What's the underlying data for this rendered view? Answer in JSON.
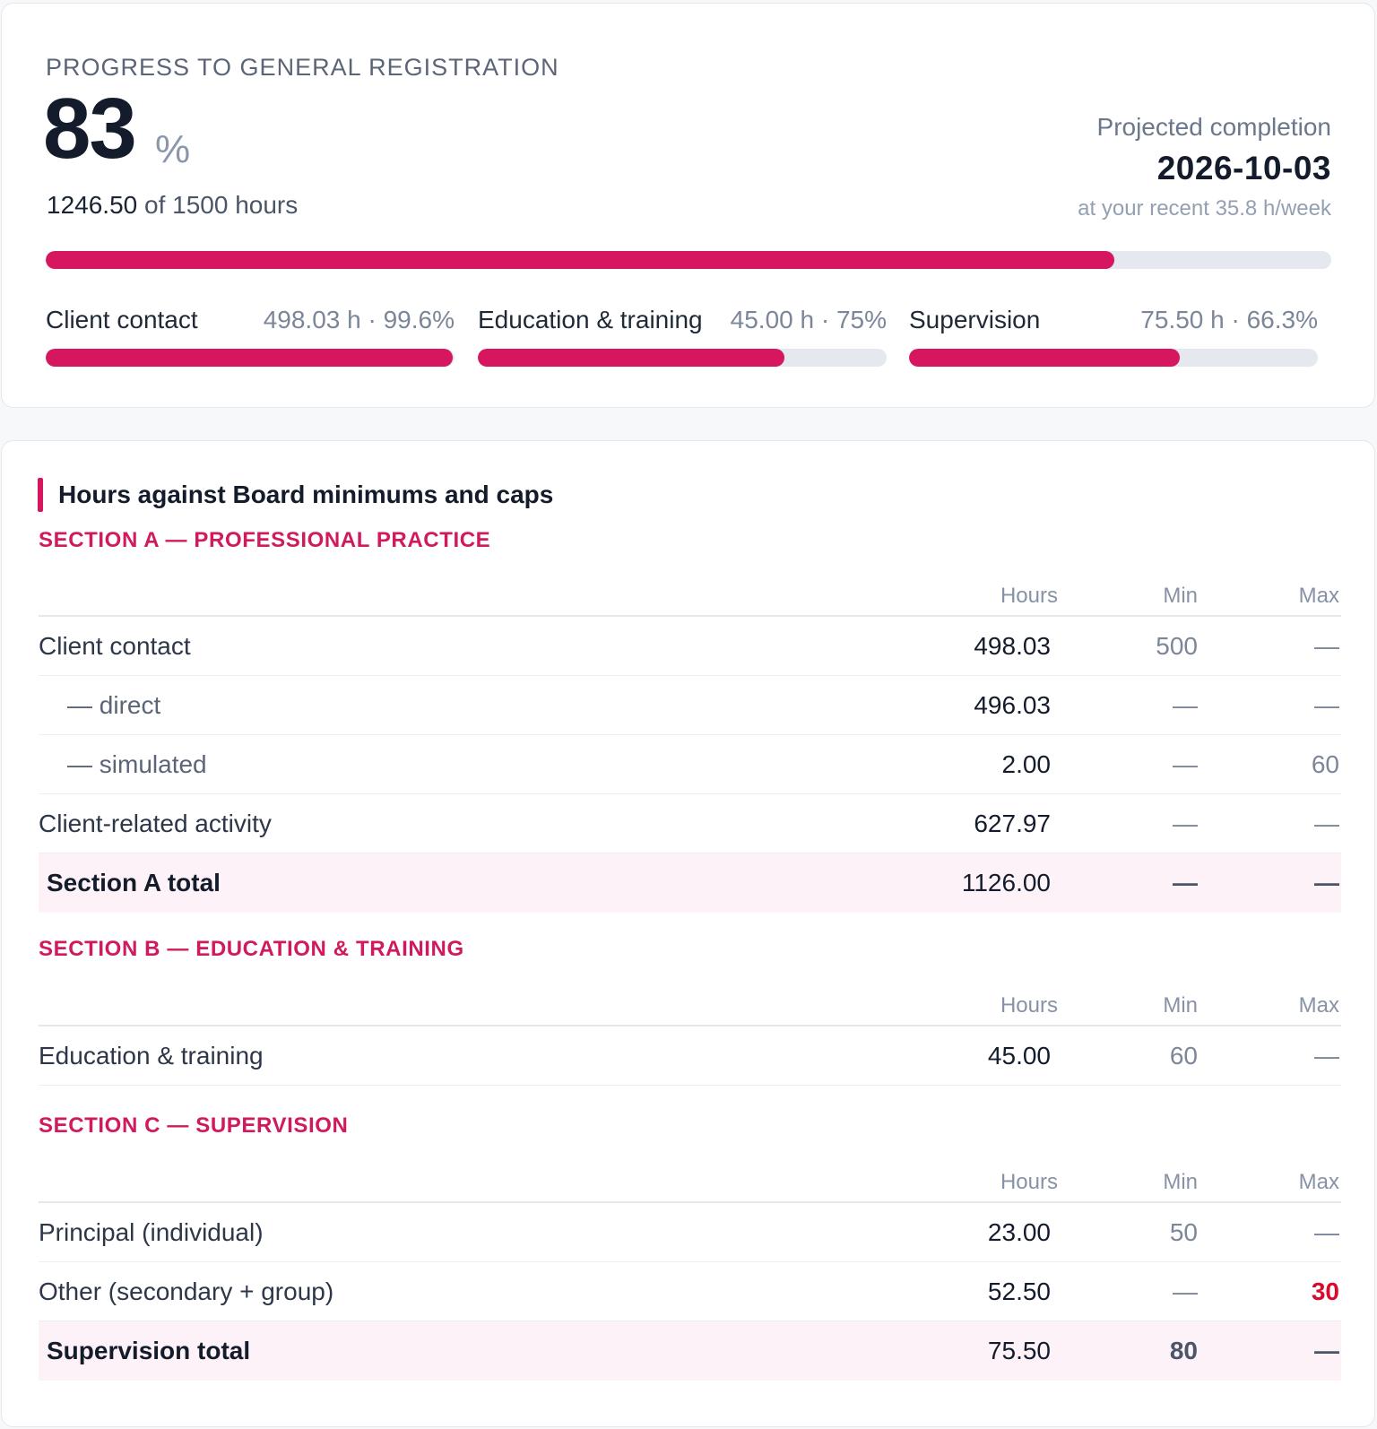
{
  "progress": {
    "eyebrow": "PROGRESS TO GENERAL REGISTRATION",
    "percent": "83",
    "percent_symbol": "%",
    "hours_done": "1246.50",
    "hours_rest": " of 1500 hours",
    "fraction": 0.831,
    "projected_label": "Projected completion",
    "projected_date": "2026-10-03",
    "projected_rate": "at your recent 35.8 h/week",
    "subs": [
      {
        "name": "Client contact",
        "value": "498.03 h · 99.6%",
        "fraction": 0.996
      },
      {
        "name": "Education & training",
        "value": "45.00 h · 75%",
        "fraction": 0.75
      },
      {
        "name": "Supervision",
        "value": "75.50 h · 66.3%",
        "fraction": 0.663
      }
    ]
  },
  "hours": {
    "title": "Hours against Board minimums and caps",
    "col_hours": "Hours",
    "col_min": "Min",
    "col_max": "Max",
    "section_a": {
      "heading": "SECTION A — PROFESSIONAL PRACTICE",
      "rows": [
        {
          "label": "Client contact",
          "hours": "498.03",
          "min": "500",
          "max": "—"
        },
        {
          "label": "— direct",
          "hours": "496.03",
          "min": "—",
          "max": "—"
        },
        {
          "label": "— simulated",
          "hours": "2.00",
          "min": "—",
          "max": "60"
        },
        {
          "label": "Client-related activity",
          "hours": "627.97",
          "min": "—",
          "max": "—"
        }
      ],
      "total": {
        "label": "Section A total",
        "hours": "1126.00",
        "min": "—",
        "max": "—"
      }
    },
    "section_b": {
      "heading": "SECTION B — EDUCATION & TRAINING",
      "rows": [
        {
          "label": "Education & training",
          "hours": "45.00",
          "min": "60",
          "max": "—"
        }
      ]
    },
    "section_c": {
      "heading": "SECTION C — SUPERVISION",
      "rows": [
        {
          "label": "Principal (individual)",
          "hours": "23.00",
          "min": "50",
          "max": "—"
        },
        {
          "label": "Other (secondary + group)",
          "hours": "52.50",
          "min": "—",
          "max": "30"
        }
      ],
      "total": {
        "label": "Supervision total",
        "hours": "75.50",
        "min": "80",
        "max": "—"
      }
    }
  },
  "colors": {
    "accent": "#d6175f",
    "warn": "#d90a2c",
    "track": "#e5e8ee"
  }
}
